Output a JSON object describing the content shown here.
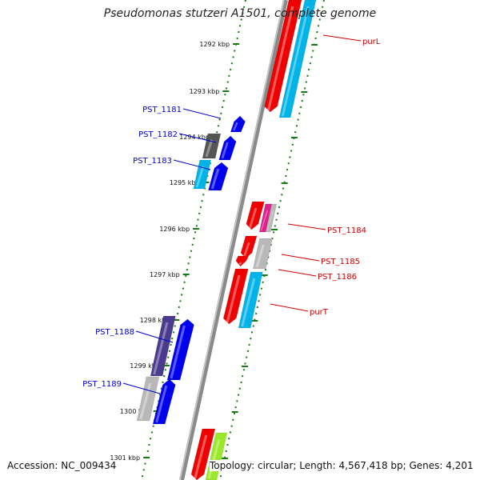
{
  "title": "Pseudomonas stutzeri A1501, complete genome",
  "accession": "Accession: NC_009434",
  "topology": "Topology: circular; Length: 4,567,418 bp; Genes: 4,201",
  "colors": {
    "backbone": "#8a8a8a",
    "tick": "#1a7a1a",
    "forward_label": "#0000cc",
    "reverse_label": "#cc0000",
    "red": "#ee0000",
    "cyan": "#00b4e8",
    "blue": "#0000ee",
    "dark_gray": "#555555",
    "light_gray": "#b8b8b8",
    "magenta": "#e0208c",
    "purple": "#4b3b8f",
    "lime": "#9be82a"
  },
  "ticks": [
    "1292 kbp",
    "1293 kbp",
    "1294 kbp",
    "1295 kbp",
    "1296 kbp",
    "1297 kbp",
    "1298 kbp",
    "1299 kbp",
    "1300 kbp",
    "1301 kbp"
  ],
  "gene_labels": {
    "forward": [
      "PST_1181",
      "PST_1182",
      "PST_1183",
      "PST_1188",
      "PST_1189"
    ],
    "reverse": [
      "purL",
      "PST_1184",
      "PST_1185",
      "PST_1186",
      "purT"
    ]
  }
}
